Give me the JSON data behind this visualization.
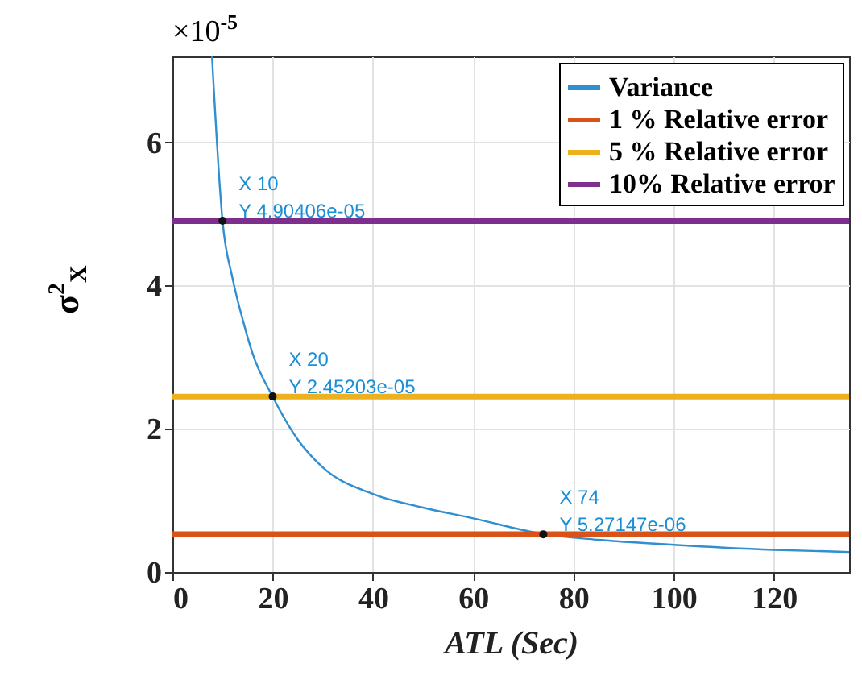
{
  "chart_data": {
    "type": "line",
    "ylabel": "σ$^{2}$$_{X}$",
    "xlabel": "ATL   (Sec)",
    "annotations": [
      "×10$^{-5}$",
      {
        "text": "X 10\nY 4.90406e-05",
        "x": 10,
        "y": 4.90406
      },
      {
        "text": "X 20\nY 2.45203e-05",
        "x": 20,
        "y": 2.45203
      },
      {
        "text": "X 74\nY 5.27147e-06",
        "x": 74,
        "y": 0.527147
      }
    ],
    "series": [
      {
        "name": "Variance",
        "color": "#2f8fd0",
        "x": [
          7.9,
          10,
          12,
          14.2,
          16,
          20,
          25,
          30,
          40,
          50,
          60,
          74,
          85,
          100,
          120,
          135
        ],
        "values": [
          7.2,
          4.9,
          4.1,
          3.48,
          3.05,
          2.45,
          1.85,
          1.46,
          1.09,
          0.9,
          0.75,
          0.53,
          0.45,
          0.38,
          0.31,
          0.28
        ]
      },
      {
        "name": "1 % Relative error",
        "color": "#d95319",
        "x": [
          0,
          135
        ],
        "values": [
          0.53,
          0.53
        ]
      },
      {
        "name": "5 % Relative error",
        "color": "#edb120",
        "x": [
          0,
          135
        ],
        "values": [
          2.45,
          2.45
        ]
      },
      {
        "name": "10% Relative error",
        "color": "#7e2f8e",
        "x": [
          0,
          135
        ],
        "values": [
          4.9,
          4.9
        ]
      }
    ],
    "xlim": [
      0,
      135
    ],
    "xticks": [
      0,
      20,
      40,
      60,
      80,
      100,
      120
    ],
    "ylim": [
      0,
      7.2
    ],
    "yticks": [
      0,
      2,
      4,
      6
    ],
    "grid": true,
    "legend": "top right",
    "marker": "none",
    "line_style": "solid"
  }
}
